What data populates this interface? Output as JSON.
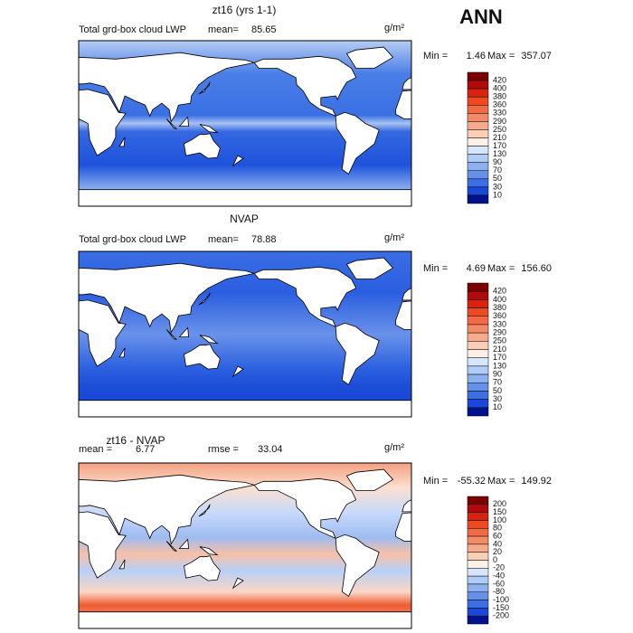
{
  "header": {
    "title": "ANN"
  },
  "panels": [
    {
      "title": "zt16 (yrs 1-1)",
      "subtitle": "Total grd-box cloud LWP",
      "stat1_label": "mean=",
      "stat1_value": "85.65",
      "units": "g/m²",
      "min_label": "Min =",
      "min": "1.46",
      "max_label": "Max =",
      "max": "357.07",
      "colorbar": {
        "labels": [
          420,
          400,
          380,
          360,
          330,
          290,
          250,
          210,
          170,
          130,
          90,
          70,
          50,
          30,
          10
        ],
        "colors": [
          "#7a0000",
          "#b00a0a",
          "#d8240e",
          "#ee4a22",
          "#f26a44",
          "#f58a66",
          "#f8ab8c",
          "#fbcfb6",
          "#fdf0e4",
          "#d6e6ff",
          "#b0ccf6",
          "#8cb0f0",
          "#6690ea",
          "#3c6ee4",
          "#1a48d8",
          "#00118e"
        ]
      }
    },
    {
      "title": "NVAP",
      "subtitle": "Total grd-box cloud LWP",
      "stat1_label": "mean=",
      "stat1_value": "78.88",
      "units": "g/m²",
      "min_label": "Min =",
      "min": "4.69",
      "max_label": "Max =",
      "max": "156.60",
      "colorbar": {
        "labels": [
          420,
          400,
          380,
          360,
          330,
          290,
          250,
          210,
          170,
          130,
          90,
          70,
          50,
          30,
          10
        ],
        "colors": [
          "#7a0000",
          "#b00a0a",
          "#d8240e",
          "#ee4a22",
          "#f26a44",
          "#f58a66",
          "#f8ab8c",
          "#fbcfb6",
          "#fdf0e4",
          "#d6e6ff",
          "#b0ccf6",
          "#8cb0f0",
          "#6690ea",
          "#3c6ee4",
          "#1a48d8",
          "#00118e"
        ]
      }
    },
    {
      "title": "zt16 - NVAP",
      "stat1_label": "mean =",
      "stat1_value": "6.77",
      "stat2_label": "rmse =",
      "stat2_value": "33.04",
      "units": "g/m²",
      "min_label": "Min =",
      "min": "-55.32",
      "max_label": "Max =",
      "max": "149.92",
      "colorbar": {
        "labels": [
          200,
          150,
          100,
          80,
          60,
          40,
          20,
          0,
          -20,
          -40,
          -60,
          -80,
          -100,
          -150,
          -200
        ],
        "colors": [
          "#7a0000",
          "#b00a0a",
          "#d8240e",
          "#ee4a22",
          "#f26a44",
          "#f58a66",
          "#f8ab8c",
          "#fbcfb6",
          "#fdf0e4",
          "#d6e6ff",
          "#b0ccf6",
          "#8cb0f0",
          "#6690ea",
          "#3c6ee4",
          "#1a48d8",
          "#00118e"
        ]
      }
    }
  ]
}
